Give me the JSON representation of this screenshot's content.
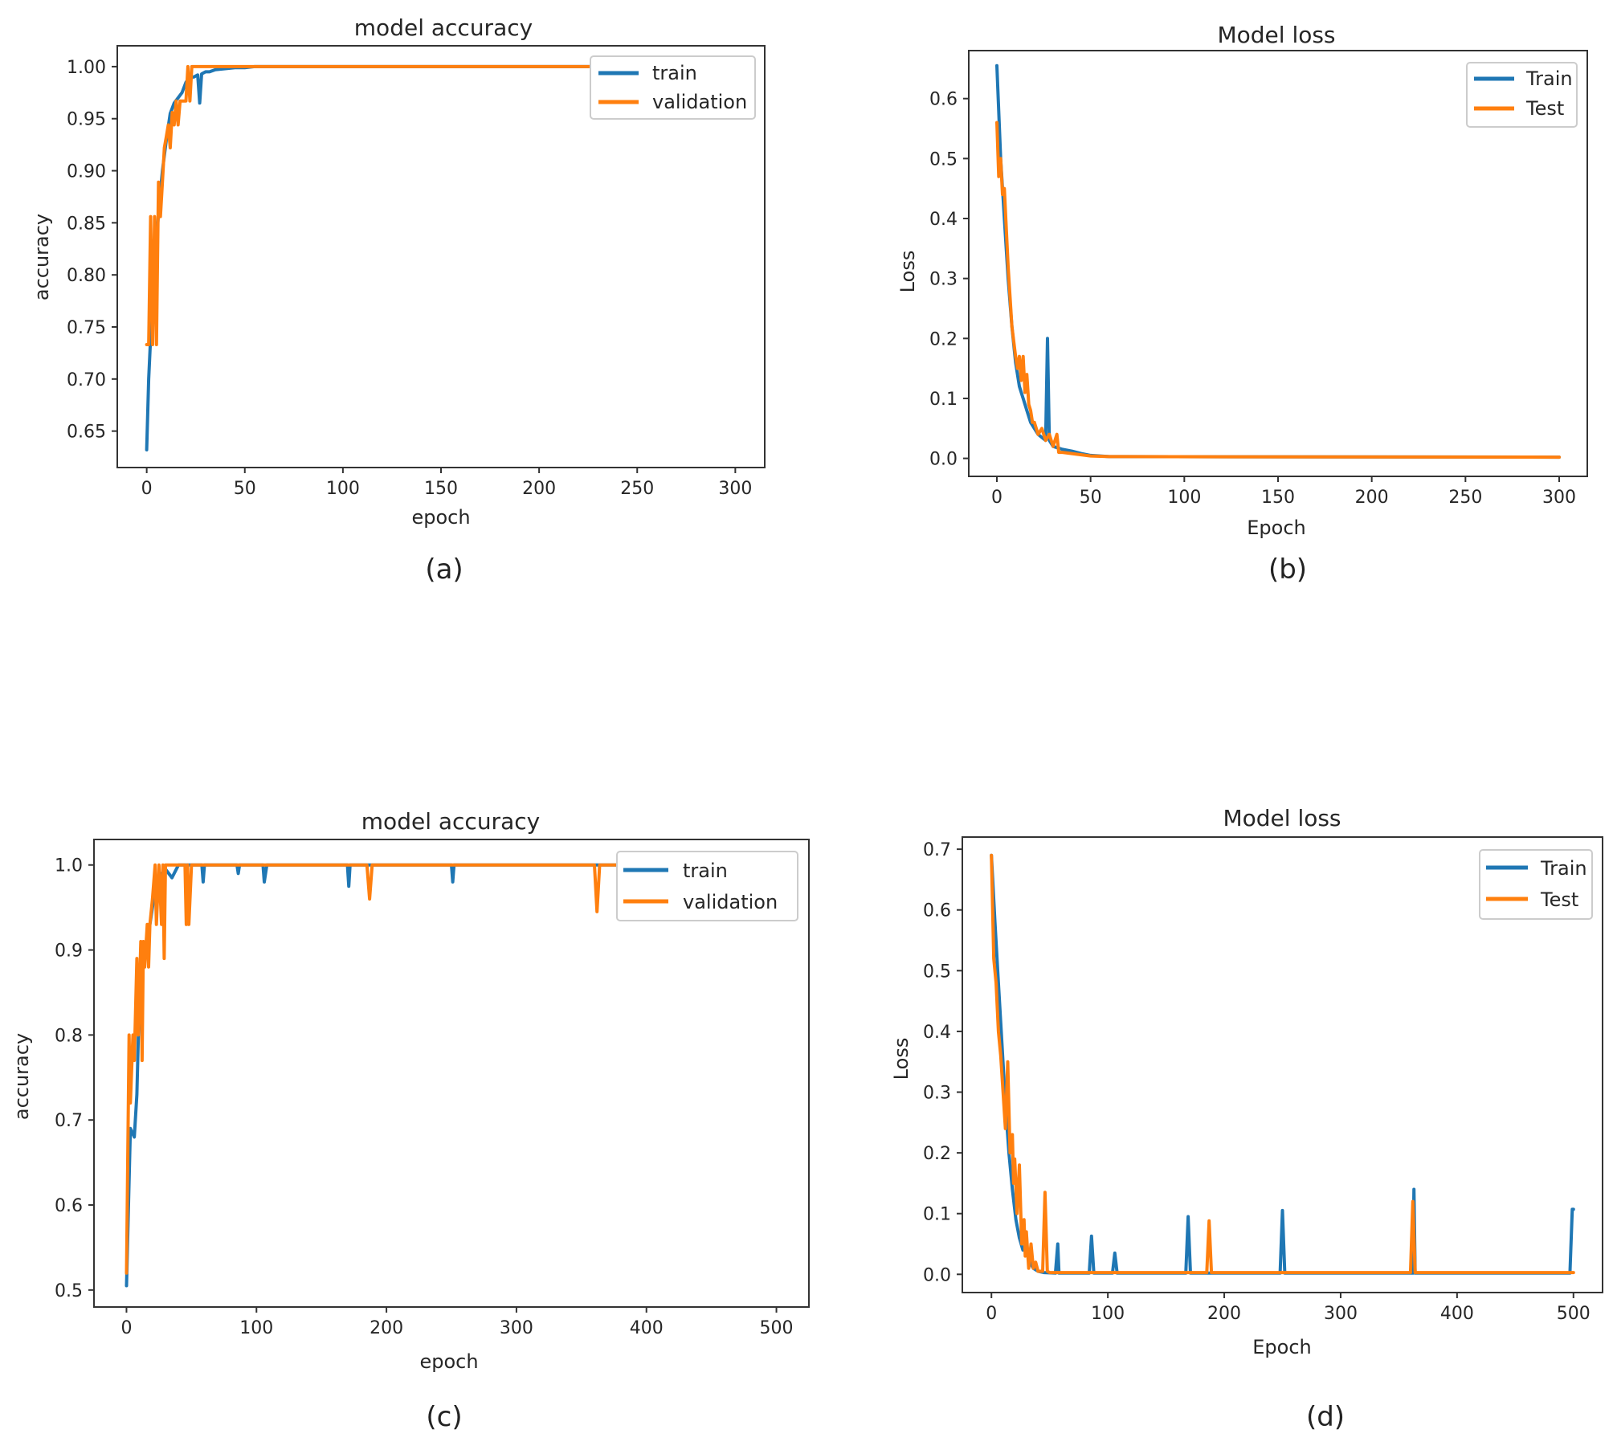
{
  "chart_data": [
    {
      "id": "a",
      "type": "line",
      "title": "model accuracy",
      "xlabel": "epoch",
      "ylabel": "accuracy",
      "xlim": [
        -15,
        315
      ],
      "ylim": [
        0.615,
        1.02
      ],
      "xticks": [
        0,
        50,
        100,
        150,
        200,
        250,
        300
      ],
      "xtick_labels": [
        "0",
        "50",
        "100",
        "150",
        "200",
        "250",
        "300"
      ],
      "yticks": [
        0.65,
        0.7,
        0.75,
        0.8,
        0.85,
        0.9,
        0.95,
        1.0
      ],
      "ytick_labels": [
        "0.65",
        "0.70",
        "0.75",
        "0.80",
        "0.85",
        "0.90",
        "0.95",
        "1.00"
      ],
      "legend": {
        "position": "top-right"
      },
      "caption": "(a)",
      "series": [
        {
          "name": "train",
          "color": "#1f77b4",
          "x": [
            0,
            1,
            2,
            4,
            6,
            8,
            10,
            12,
            14,
            16,
            18,
            20,
            22,
            24,
            26,
            27,
            28,
            30,
            32,
            35,
            40,
            45,
            50,
            55,
            300
          ],
          "y": [
            0.632,
            0.7,
            0.74,
            0.8,
            0.86,
            0.9,
            0.93,
            0.955,
            0.965,
            0.97,
            0.975,
            0.985,
            0.99,
            0.99,
            0.992,
            0.965,
            0.993,
            0.995,
            0.995,
            0.997,
            0.998,
            0.999,
            0.999,
            1.0,
            1.0
          ]
        },
        {
          "name": "validation",
          "color": "#ff7f0e",
          "x": [
            0,
            1,
            2,
            3,
            4,
            5,
            6,
            7,
            8,
            9,
            10,
            11,
            12,
            13,
            14,
            15,
            16,
            17,
            18,
            19,
            20,
            21,
            22,
            23,
            300
          ],
          "y": [
            0.733,
            0.733,
            0.856,
            0.733,
            0.856,
            0.733,
            0.889,
            0.856,
            0.889,
            0.922,
            0.933,
            0.944,
            0.922,
            0.956,
            0.944,
            0.967,
            0.944,
            0.967,
            0.967,
            0.967,
            0.967,
            1.0,
            0.967,
            1.0,
            1.0
          ]
        }
      ]
    },
    {
      "id": "b",
      "type": "line",
      "title": "Model loss",
      "xlabel": "Epoch",
      "ylabel": "Loss",
      "xlim": [
        -15,
        315
      ],
      "ylim": [
        -0.03,
        0.68
      ],
      "xticks": [
        0,
        50,
        100,
        150,
        200,
        250,
        300
      ],
      "xtick_labels": [
        "0",
        "50",
        "100",
        "150",
        "200",
        "250",
        "300"
      ],
      "yticks": [
        0.0,
        0.1,
        0.2,
        0.3,
        0.4,
        0.5,
        0.6
      ],
      "ytick_labels": [
        "0.0",
        "0.1",
        "0.2",
        "0.3",
        "0.4",
        "0.5",
        "0.6"
      ],
      "legend": {
        "position": "top-right"
      },
      "caption": "(b)",
      "series": [
        {
          "name": "Train",
          "color": "#1f77b4",
          "x": [
            0,
            2,
            4,
            6,
            8,
            10,
            12,
            14,
            16,
            18,
            20,
            22,
            24,
            26,
            27,
            28,
            30,
            35,
            40,
            45,
            50,
            60,
            300
          ],
          "y": [
            0.655,
            0.5,
            0.4,
            0.3,
            0.22,
            0.16,
            0.12,
            0.1,
            0.08,
            0.06,
            0.05,
            0.04,
            0.035,
            0.03,
            0.2,
            0.03,
            0.02,
            0.015,
            0.012,
            0.008,
            0.005,
            0.003,
            0.002
          ]
        },
        {
          "name": "Test",
          "color": "#ff7f0e",
          "x": [
            0,
            1,
            2,
            3,
            4,
            6,
            8,
            10,
            11,
            12,
            13,
            14,
            15,
            16,
            17,
            18,
            19,
            20,
            22,
            24,
            26,
            28,
            30,
            32,
            33,
            35,
            40,
            45,
            50,
            60,
            300
          ],
          "y": [
            0.56,
            0.47,
            0.5,
            0.44,
            0.45,
            0.32,
            0.22,
            0.17,
            0.15,
            0.17,
            0.13,
            0.17,
            0.11,
            0.14,
            0.09,
            0.08,
            0.06,
            0.06,
            0.04,
            0.05,
            0.03,
            0.04,
            0.02,
            0.04,
            0.01,
            0.01,
            0.008,
            0.006,
            0.004,
            0.003,
            0.002
          ]
        }
      ]
    },
    {
      "id": "c",
      "type": "line",
      "title": "model accuracy",
      "xlabel": "epoch",
      "ylabel": "accuracy",
      "xlim": [
        -25,
        525
      ],
      "ylim": [
        0.48,
        1.03
      ],
      "xticks": [
        0,
        100,
        200,
        300,
        400,
        500
      ],
      "xtick_labels": [
        "0",
        "100",
        "200",
        "300",
        "400",
        "500"
      ],
      "yticks": [
        0.5,
        0.6,
        0.7,
        0.8,
        0.9,
        1.0
      ],
      "ytick_labels": [
        "0.5",
        "0.6",
        "0.7",
        "0.8",
        "0.9",
        "1.0"
      ],
      "legend": {
        "position": "top-right"
      },
      "caption": "(c)",
      "series": [
        {
          "name": "train",
          "color": "#1f77b4",
          "x": [
            0,
            3,
            6,
            8,
            10,
            12,
            14,
            16,
            18,
            20,
            22,
            24,
            26,
            28,
            30,
            35,
            40,
            50,
            58,
            59,
            60,
            85,
            86,
            87,
            105,
            106,
            108,
            110,
            170,
            171,
            172,
            250,
            251,
            252,
            360,
            500
          ],
          "y": [
            0.505,
            0.69,
            0.68,
            0.73,
            0.85,
            0.87,
            0.89,
            0.91,
            0.93,
            0.95,
            0.97,
            0.98,
            0.99,
            0.99,
            0.995,
            0.985,
            1.0,
            1.0,
            1.0,
            0.98,
            1.0,
            1.0,
            0.99,
            1.0,
            1.0,
            0.98,
            1.0,
            1.0,
            1.0,
            0.975,
            1.0,
            1.0,
            0.98,
            1.0,
            1.0,
            1.0
          ]
        },
        {
          "name": "validation",
          "color": "#ff7f0e",
          "x": [
            0,
            2,
            3,
            5,
            6,
            8,
            9,
            11,
            12,
            13,
            14,
            16,
            17,
            18,
            20,
            22,
            23,
            25,
            27,
            28,
            29,
            30,
            35,
            45,
            46,
            47,
            48,
            50,
            185,
            187,
            189,
            190,
            360,
            362,
            364,
            365,
            500
          ],
          "y": [
            0.52,
            0.8,
            0.72,
            0.8,
            0.77,
            0.89,
            0.8,
            0.91,
            0.77,
            0.91,
            0.88,
            0.93,
            0.88,
            0.93,
            0.96,
            1.0,
            0.93,
            1.0,
            0.93,
            1.0,
            0.89,
            1.0,
            1.0,
            1.0,
            0.93,
            1.0,
            0.93,
            1.0,
            1.0,
            0.96,
            1.0,
            1.0,
            1.0,
            0.945,
            1.0,
            1.0,
            1.0
          ]
        }
      ]
    },
    {
      "id": "d",
      "type": "line",
      "title": "Model loss",
      "xlabel": "Epoch",
      "ylabel": "Loss",
      "xlim": [
        -25,
        525
      ],
      "ylim": [
        -0.03,
        0.72
      ],
      "xticks": [
        0,
        100,
        200,
        300,
        400,
        500
      ],
      "xtick_labels": [
        "0",
        "100",
        "200",
        "300",
        "400",
        "500"
      ],
      "yticks": [
        0.0,
        0.1,
        0.2,
        0.3,
        0.4,
        0.5,
        0.6,
        0.7
      ],
      "ytick_labels": [
        "0.0",
        "0.1",
        "0.2",
        "0.3",
        "0.4",
        "0.5",
        "0.6",
        "0.7"
      ],
      "legend": {
        "position": "top-right"
      },
      "caption": "(d)",
      "series": [
        {
          "name": "Train",
          "color": "#1f77b4",
          "x": [
            0,
            3,
            6,
            9,
            12,
            15,
            18,
            21,
            24,
            27,
            30,
            33,
            36,
            40,
            45,
            55,
            57,
            58,
            60,
            84,
            86,
            88,
            104,
            106,
            108,
            167,
            169,
            171,
            248,
            250,
            252,
            362,
            363,
            364,
            497,
            499,
            500
          ],
          "y": [
            0.69,
            0.58,
            0.48,
            0.38,
            0.28,
            0.2,
            0.14,
            0.09,
            0.06,
            0.04,
            0.05,
            0.02,
            0.01,
            0.005,
            0.003,
            0.002,
            0.05,
            0.002,
            0.002,
            0.002,
            0.063,
            0.002,
            0.002,
            0.035,
            0.002,
            0.002,
            0.095,
            0.002,
            0.002,
            0.105,
            0.002,
            0.002,
            0.14,
            0.002,
            0.002,
            0.107,
            0.107
          ]
        },
        {
          "name": "Test",
          "color": "#ff7f0e",
          "x": [
            0,
            2,
            4,
            6,
            8,
            10,
            12,
            14,
            16,
            18,
            19,
            20,
            22,
            24,
            26,
            28,
            29,
            30,
            32,
            34,
            36,
            38,
            40,
            44,
            46,
            48,
            50,
            185,
            187,
            189,
            190,
            360,
            362,
            364,
            365,
            500
          ],
          "y": [
            0.69,
            0.52,
            0.48,
            0.4,
            0.36,
            0.3,
            0.24,
            0.35,
            0.2,
            0.23,
            0.15,
            0.19,
            0.1,
            0.18,
            0.05,
            0.09,
            0.03,
            0.07,
            0.01,
            0.05,
            0.01,
            0.02,
            0.005,
            0.005,
            0.135,
            0.005,
            0.003,
            0.003,
            0.088,
            0.003,
            0.003,
            0.003,
            0.12,
            0.003,
            0.003,
            0.003
          ]
        }
      ]
    }
  ]
}
